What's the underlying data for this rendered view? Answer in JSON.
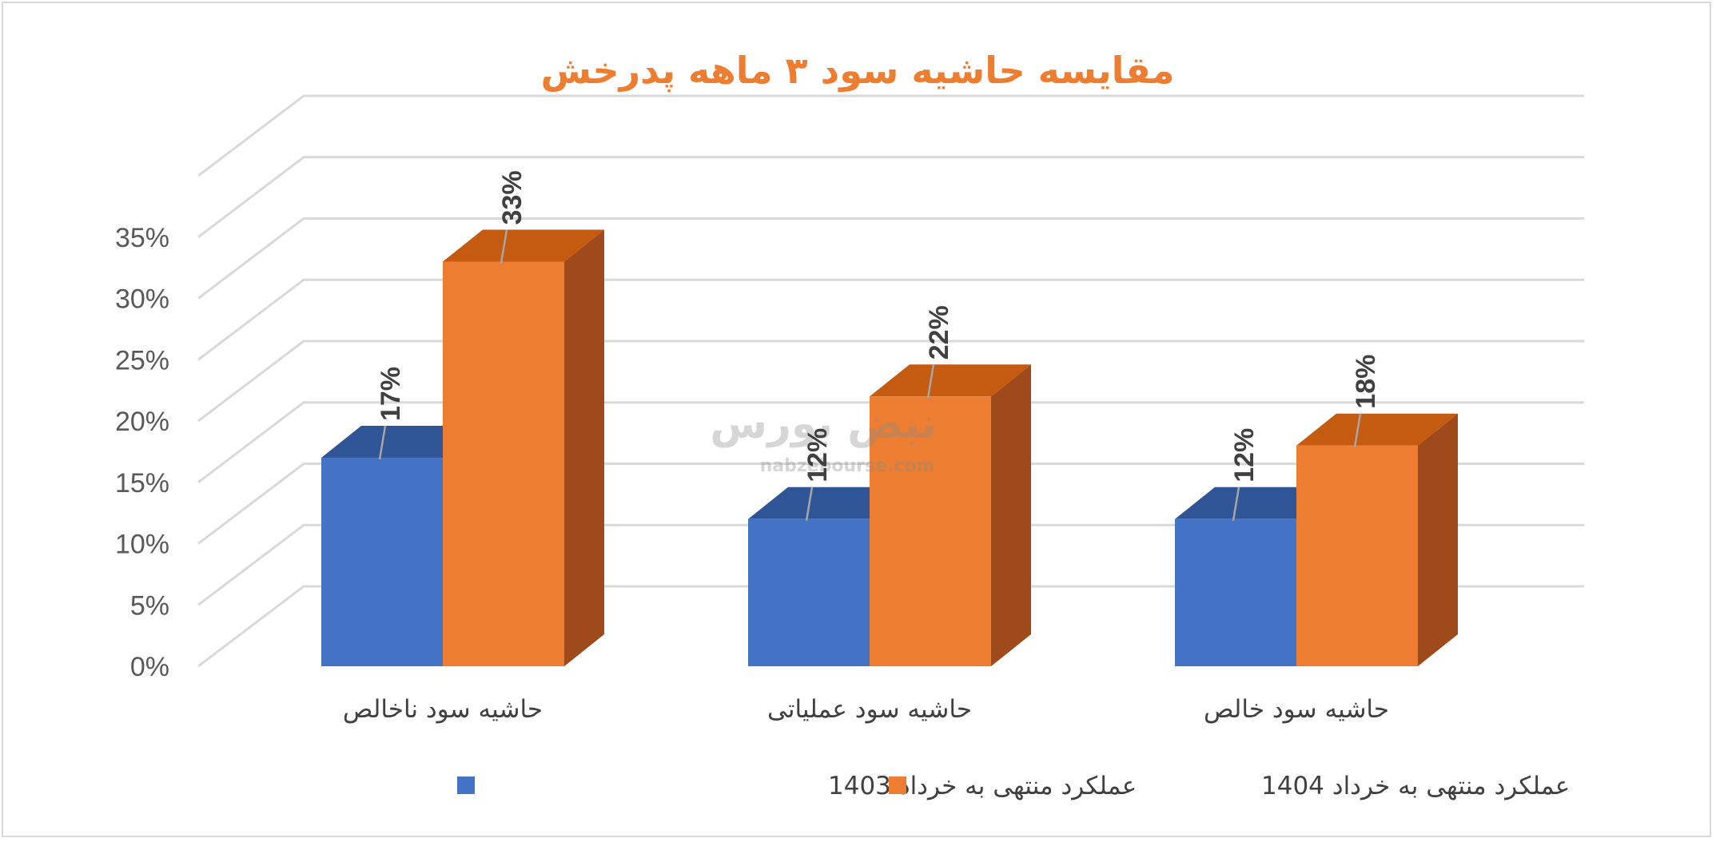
{
  "chart_data": {
    "type": "bar",
    "title": "مقایسه حاشیه سود ۳ ماهه پدرخش",
    "categories": [
      "حاشیه سود ناخالص",
      "حاشیه سود عملیاتی",
      "حاشیه سود خالص"
    ],
    "series": [
      {
        "name": "عملکرد منتهی به خرداد 1403",
        "values": [
          17,
          12,
          12
        ],
        "labels": [
          "17%",
          "12%",
          "12%"
        ]
      },
      {
        "name": "عملکرد منتهی به خرداد 1404",
        "values": [
          33,
          22,
          18
        ],
        "labels": [
          "33%",
          "22%",
          "18%"
        ]
      }
    ],
    "yticks": [
      "0%",
      "5%",
      "10%",
      "15%",
      "20%",
      "25%",
      "30%",
      "35%"
    ],
    "ylim": [
      0,
      35
    ],
    "grid": true,
    "legend_position": "bottom",
    "three_d": true
  },
  "colors": {
    "title": "#ed7d31",
    "series_1": "#4472c4",
    "series_1_top": "#2f5597",
    "series_2": "#ed7d31",
    "series_2_top": "#c55a11",
    "series_2_side": "#9e4a1b",
    "grid": "#d9d9d9"
  },
  "watermark": {
    "name": "نبض بورس",
    "url": "nabzebourse.com"
  }
}
